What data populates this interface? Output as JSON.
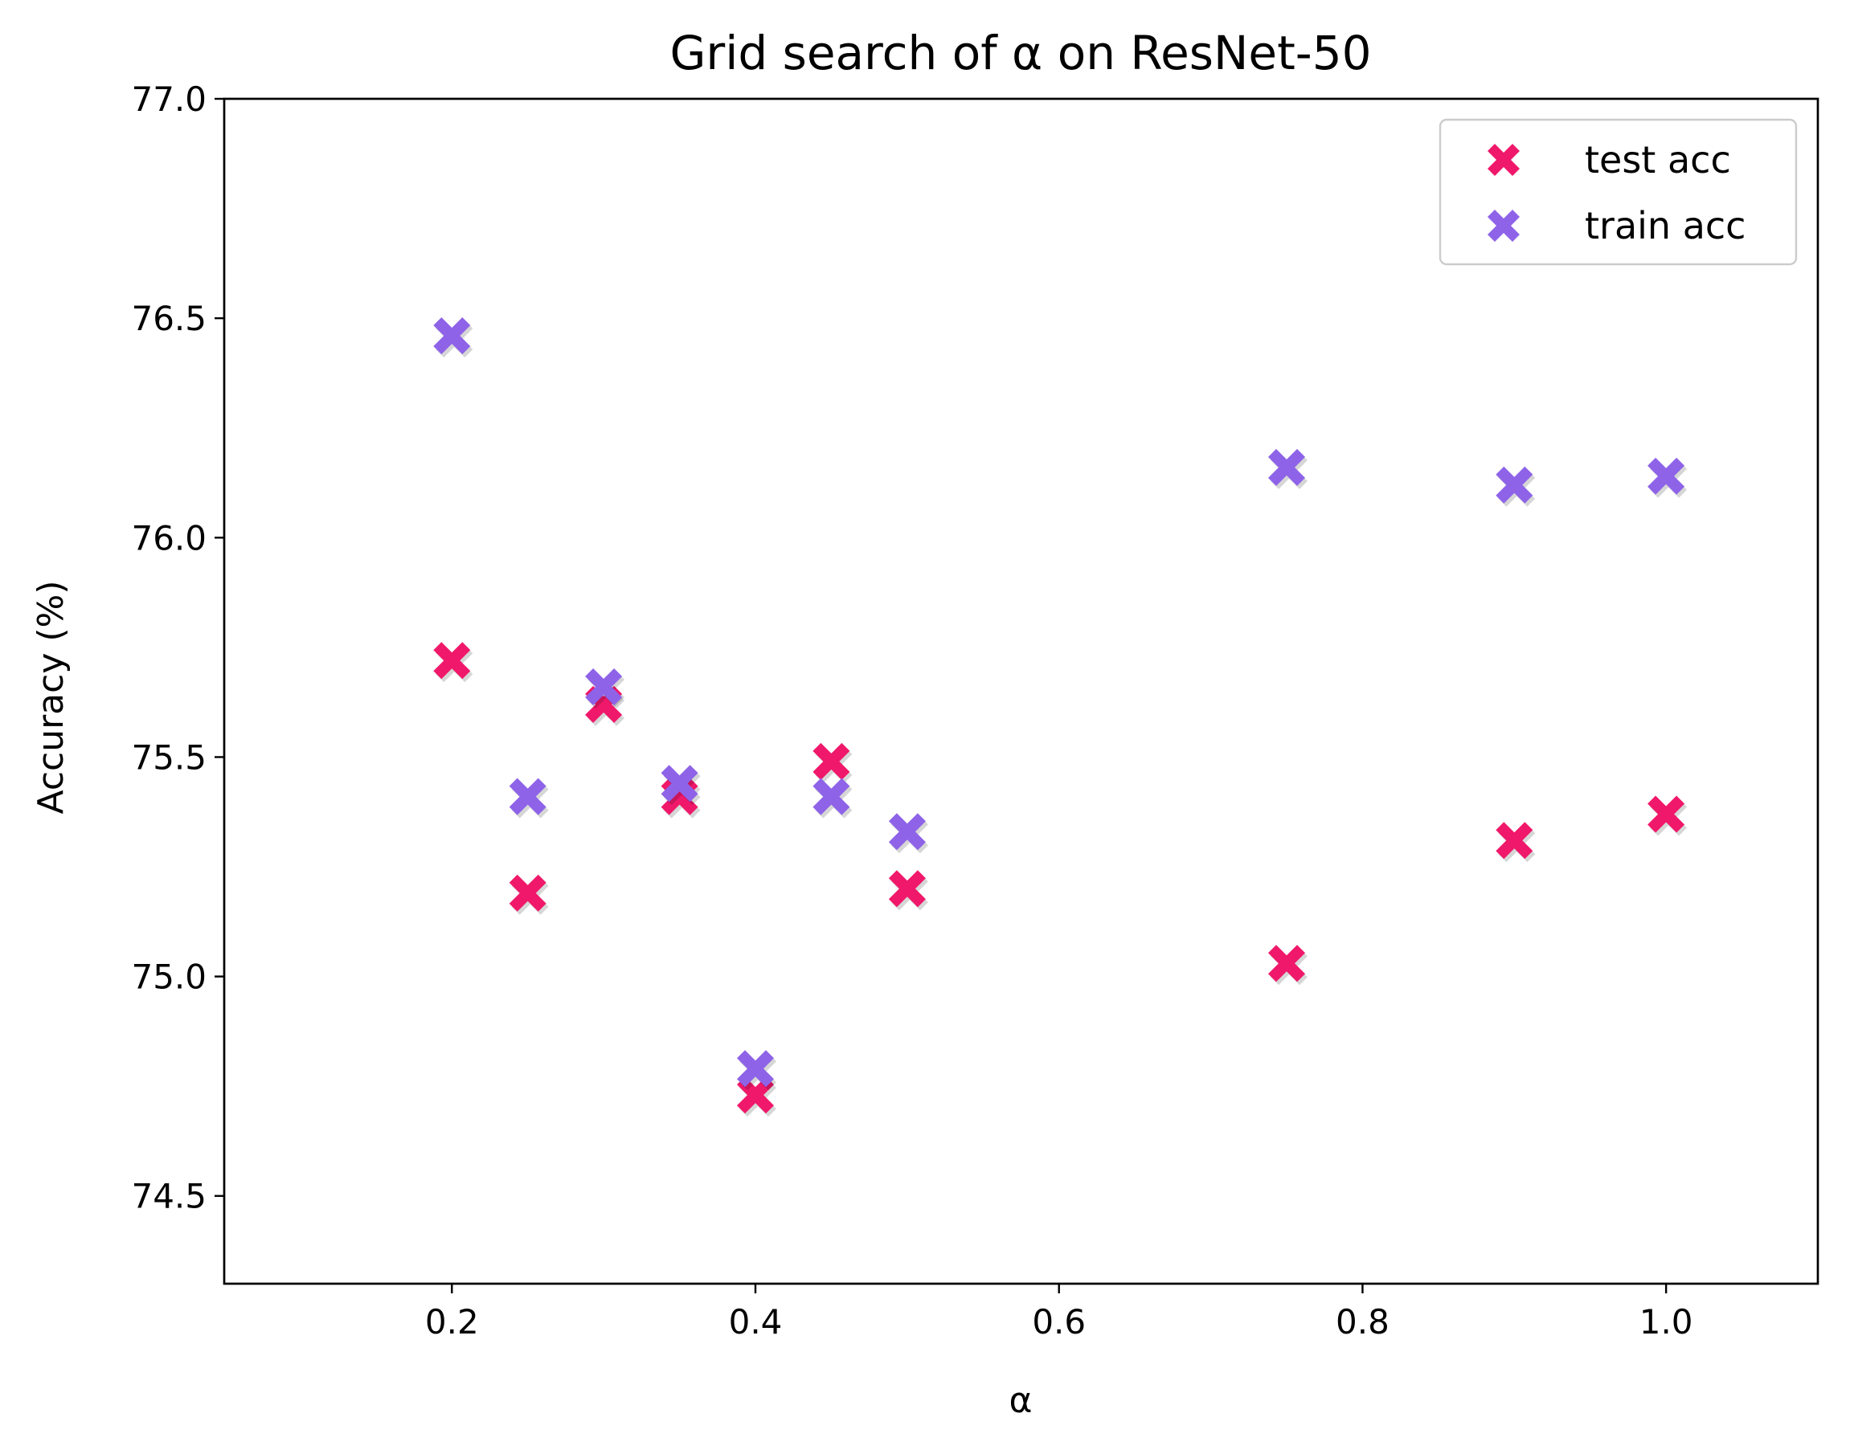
{
  "chart_data": {
    "type": "scatter",
    "title": "Grid search of α on ResNet-50",
    "xlabel": "α",
    "ylabel": "Accuracy (%)",
    "xlim": [
      0.05,
      1.1
    ],
    "ylim": [
      74.3,
      77.0
    ],
    "xticks": [
      0.2,
      0.4,
      0.6,
      0.8,
      1.0
    ],
    "xtick_labels": [
      "0.2",
      "0.4",
      "0.6",
      "0.8",
      "1.0"
    ],
    "yticks": [
      74.5,
      75.0,
      75.5,
      76.0,
      76.5,
      77.0
    ],
    "ytick_labels": [
      "74.5",
      "75.0",
      "75.5",
      "76.0",
      "76.5",
      "77.0"
    ],
    "grid": false,
    "legend_position": "top-right",
    "marker": "X",
    "series": [
      {
        "name": "test acc",
        "color": "#f0186a",
        "x": [
          0.2,
          0.25,
          0.3,
          0.35,
          0.4,
          0.45,
          0.5,
          0.75,
          0.9,
          1.0
        ],
        "y": [
          75.72,
          75.19,
          75.62,
          75.41,
          74.73,
          75.49,
          75.2,
          75.03,
          75.31,
          75.37
        ]
      },
      {
        "name": "train acc",
        "color": "#8e63e8",
        "x": [
          0.2,
          0.25,
          0.3,
          0.35,
          0.4,
          0.45,
          0.5,
          0.75,
          0.9,
          1.0
        ],
        "y": [
          76.46,
          75.41,
          75.66,
          75.44,
          74.79,
          75.41,
          75.33,
          76.16,
          76.12,
          76.14
        ]
      }
    ]
  }
}
